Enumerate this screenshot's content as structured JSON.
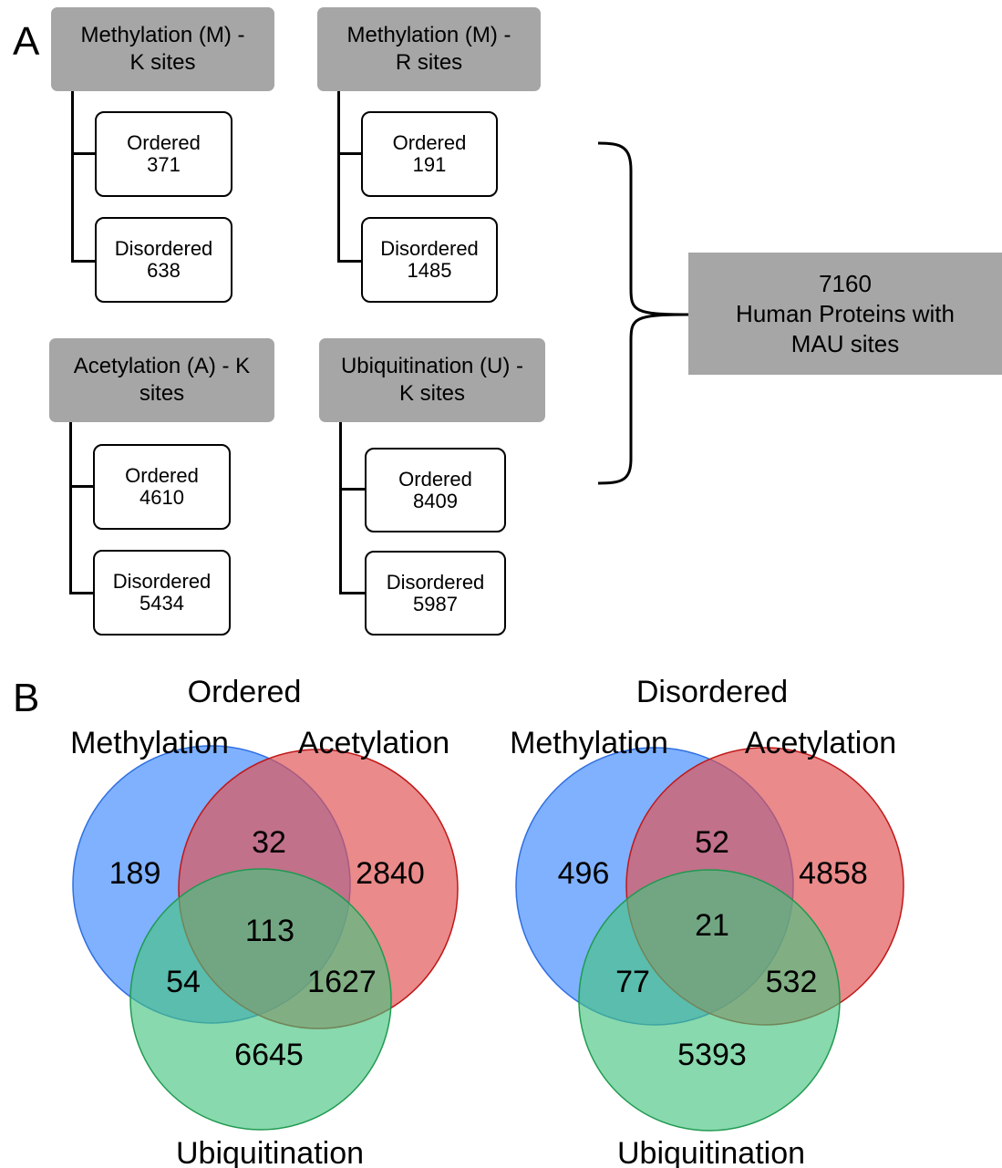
{
  "panel_a": {
    "letter": "A",
    "groups": [
      {
        "title_line1": "Methylation (M) -",
        "title_line2": "K sites",
        "ordered_label": "Ordered",
        "ordered_count": "371",
        "disordered_label": "Disordered",
        "disordered_count": "638"
      },
      {
        "title_line1": "Methylation (M) -",
        "title_line2": "R sites",
        "ordered_label": "Ordered",
        "ordered_count": "191",
        "disordered_label": "Disordered",
        "disordered_count": "1485"
      },
      {
        "title_line1": "Acetylation (A) - K",
        "title_line2": "sites",
        "ordered_label": "Ordered",
        "ordered_count": "4610",
        "disordered_label": "Disordered",
        "disordered_count": "5434"
      },
      {
        "title_line1": "Ubiquitination (U) -",
        "title_line2": "K sites",
        "ordered_label": "Ordered",
        "ordered_count": "8409",
        "disordered_label": "Disordered",
        "disordered_count": "5987"
      }
    ],
    "summary": {
      "line1": "7160",
      "line2": "Human Proteins with",
      "line3": "MAU sites"
    }
  },
  "panel_b": {
    "letter": "B",
    "colors": {
      "methylation": "#5b9bff",
      "acetylation": "#e05252",
      "ubiquitination": "#45c47e"
    },
    "venns": [
      {
        "title": "Ordered",
        "labels": {
          "methylation": "Methylation",
          "acetylation": "Acetylation",
          "ubiquitination": "Ubiquitination"
        },
        "regions": {
          "m_only": "189",
          "a_only": "2840",
          "u_only": "6645",
          "m_a": "32",
          "m_u": "54",
          "a_u": "1627",
          "m_a_u": "113"
        }
      },
      {
        "title": "Disordered",
        "labels": {
          "methylation": "Methylation",
          "acetylation": "Acetylation",
          "ubiquitination": "Ubiquitination"
        },
        "regions": {
          "m_only": "496",
          "a_only": "4858",
          "u_only": "5393",
          "m_a": "52",
          "m_u": "77",
          "a_u": "532",
          "m_a_u": "21"
        }
      }
    ]
  }
}
